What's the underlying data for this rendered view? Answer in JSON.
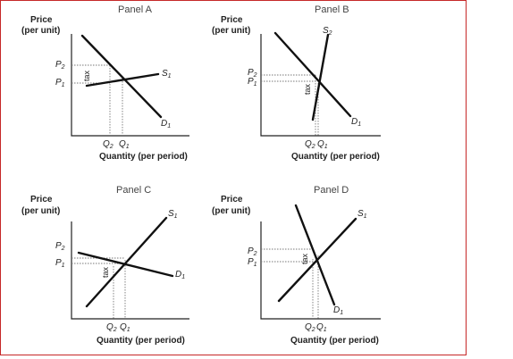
{
  "common": {
    "price_label_1": "Price",
    "price_label_2": "(per unit)",
    "quantity_label": "Quantity (per period)",
    "tax_label": "tax"
  },
  "panels": [
    {
      "title": "Panel A",
      "supply": "S",
      "supply_sub": "1",
      "demand": "D",
      "demand_sub": "1",
      "p_high": "P",
      "p_high_sub": "2",
      "p_low": "P",
      "p_low_sub": "1",
      "q_text": "Q",
      "q_a_sub": "2",
      "q_b_sub": "1"
    },
    {
      "title": "Panel B",
      "supply": "S",
      "supply_sub": "2",
      "demand": "D",
      "demand_sub": "1",
      "p_high": "P",
      "p_high_sub": "2",
      "p_low": "P",
      "p_low_sub": "1",
      "q_text": "Q",
      "q_a_sub": "2",
      "q_b_sub": "1"
    },
    {
      "title": "Panel C",
      "supply": "S",
      "supply_sub": "1",
      "demand": "D",
      "demand_sub": "1",
      "p_high": "P",
      "p_high_sub": "2",
      "p_low": "P",
      "p_low_sub": "1",
      "q_text": "Q",
      "q_a_sub": "2",
      "q_b_sub": "1"
    },
    {
      "title": "Panel D",
      "supply": "S",
      "supply_sub": "1",
      "demand": "D",
      "demand_sub": "1",
      "p_high": "P",
      "p_high_sub": "2",
      "p_low": "P",
      "p_low_sub": "1",
      "q_text": "Q",
      "q_a_sub": "2",
      "q_b_sub": "1"
    }
  ]
}
